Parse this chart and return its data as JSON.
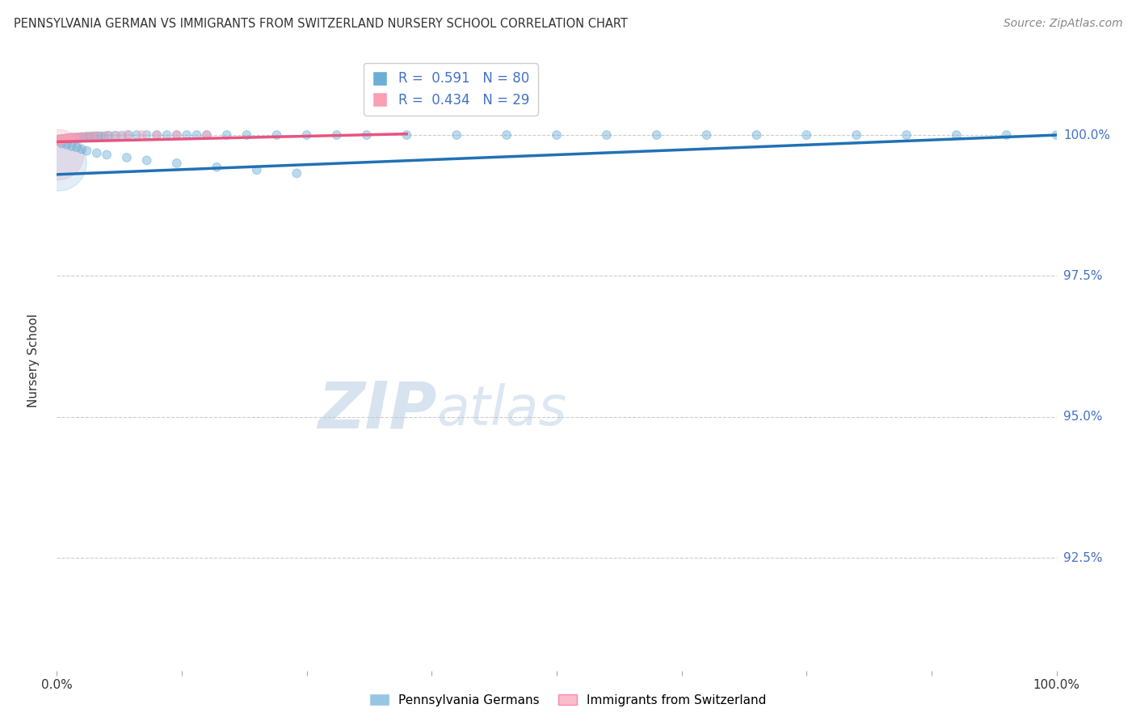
{
  "title": "PENNSYLVANIA GERMAN VS IMMIGRANTS FROM SWITZERLAND NURSERY SCHOOL CORRELATION CHART",
  "source": "Source: ZipAtlas.com",
  "ylabel": "Nursery School",
  "ytick_labels": [
    "100.0%",
    "97.5%",
    "95.0%",
    "92.5%"
  ],
  "ytick_values": [
    1.0,
    0.975,
    0.95,
    0.925
  ],
  "xlim": [
    0.0,
    1.0
  ],
  "ylim": [
    0.905,
    1.015
  ],
  "legend2_labels": [
    "Pennsylvania Germans",
    "Immigrants from Switzerland"
  ],
  "legend2_colors": [
    "#6baed6",
    "#fa9fb5"
  ],
  "watermark_zip": "ZIP",
  "watermark_atlas": "atlas",
  "bg_color": "#ffffff",
  "grid_color": "#cccccc",
  "blue_scatter_x": [
    0.001,
    0.002,
    0.003,
    0.004,
    0.005,
    0.006,
    0.007,
    0.008,
    0.009,
    0.01,
    0.011,
    0.012,
    0.013,
    0.014,
    0.015,
    0.016,
    0.017,
    0.018,
    0.019,
    0.02,
    0.021,
    0.022,
    0.023,
    0.024,
    0.025,
    0.027,
    0.029,
    0.031,
    0.033,
    0.035,
    0.038,
    0.041,
    0.044,
    0.048,
    0.052,
    0.058,
    0.065,
    0.072,
    0.08,
    0.09,
    0.1,
    0.11,
    0.12,
    0.13,
    0.14,
    0.15,
    0.17,
    0.19,
    0.22,
    0.25,
    0.28,
    0.31,
    0.35,
    0.4,
    0.45,
    0.5,
    0.55,
    0.6,
    0.65,
    0.7,
    0.75,
    0.8,
    0.85,
    0.9,
    0.95,
    1.0,
    0.005,
    0.01,
    0.015,
    0.02,
    0.025,
    0.03,
    0.04,
    0.05,
    0.07,
    0.09,
    0.12,
    0.16,
    0.2,
    0.24
  ],
  "blue_scatter_y": [
    0.999,
    0.999,
    0.999,
    0.9992,
    0.9992,
    0.9993,
    0.9993,
    0.9993,
    0.9994,
    0.9994,
    0.9994,
    0.9994,
    0.9994,
    0.9995,
    0.9995,
    0.9995,
    0.9995,
    0.9995,
    0.9995,
    0.9995,
    0.9995,
    0.9995,
    0.9995,
    0.9996,
    0.9996,
    0.9996,
    0.9997,
    0.9997,
    0.9997,
    0.9997,
    0.9998,
    0.9998,
    0.9998,
    0.9998,
    0.9999,
    0.9999,
    0.9999,
    1.0,
    1.0,
    1.0,
    1.0,
    1.0,
    1.0,
    1.0,
    1.0,
    1.0,
    1.0,
    1.0,
    1.0,
    1.0,
    1.0,
    1.0,
    1.0,
    1.0,
    1.0,
    1.0,
    1.0,
    1.0,
    1.0,
    1.0,
    1.0,
    1.0,
    1.0,
    1.0,
    1.0,
    1.0,
    0.9985,
    0.9983,
    0.998,
    0.9978,
    0.9975,
    0.9972,
    0.9968,
    0.9965,
    0.996,
    0.9955,
    0.995,
    0.9943,
    0.9938,
    0.9932
  ],
  "blue_scatter_sizes": [
    60,
    60,
    60,
    60,
    60,
    60,
    60,
    60,
    60,
    60,
    60,
    60,
    60,
    60,
    60,
    60,
    60,
    60,
    60,
    60,
    60,
    60,
    60,
    60,
    60,
    60,
    60,
    60,
    60,
    60,
    60,
    60,
    60,
    60,
    60,
    60,
    60,
    60,
    60,
    60,
    60,
    60,
    60,
    60,
    60,
    60,
    60,
    60,
    60,
    60,
    60,
    60,
    60,
    60,
    60,
    60,
    60,
    60,
    60,
    60,
    60,
    60,
    60,
    60,
    60,
    60,
    60,
    60,
    60,
    60,
    60,
    60,
    60,
    60,
    60,
    60,
    60,
    60,
    60,
    60
  ],
  "pink_scatter_x": [
    0.001,
    0.002,
    0.003,
    0.004,
    0.005,
    0.006,
    0.007,
    0.008,
    0.009,
    0.01,
    0.011,
    0.012,
    0.013,
    0.014,
    0.015,
    0.017,
    0.019,
    0.022,
    0.025,
    0.03,
    0.035,
    0.04,
    0.05,
    0.06,
    0.07,
    0.085,
    0.1,
    0.12,
    0.15
  ],
  "pink_scatter_y": [
    0.999,
    0.999,
    0.9991,
    0.9991,
    0.9992,
    0.9992,
    0.9993,
    0.9993,
    0.9993,
    0.9994,
    0.9994,
    0.9994,
    0.9994,
    0.9995,
    0.9995,
    0.9995,
    0.9996,
    0.9996,
    0.9997,
    0.9997,
    0.9998,
    0.9998,
    0.9999,
    0.9999,
    1.0,
    1.0,
    1.0,
    1.0,
    1.0
  ],
  "pink_scatter_sizes": [
    60,
    60,
    60,
    60,
    60,
    60,
    60,
    60,
    60,
    60,
    60,
    60,
    60,
    60,
    60,
    60,
    60,
    60,
    60,
    60,
    60,
    60,
    60,
    60,
    60,
    60,
    60,
    60,
    60
  ],
  "blue_line_x": [
    0.0,
    1.0
  ],
  "blue_line_y": [
    0.993,
    1.0
  ],
  "pink_line_x": [
    0.0,
    0.35
  ],
  "pink_line_y": [
    0.9988,
    1.0002
  ]
}
